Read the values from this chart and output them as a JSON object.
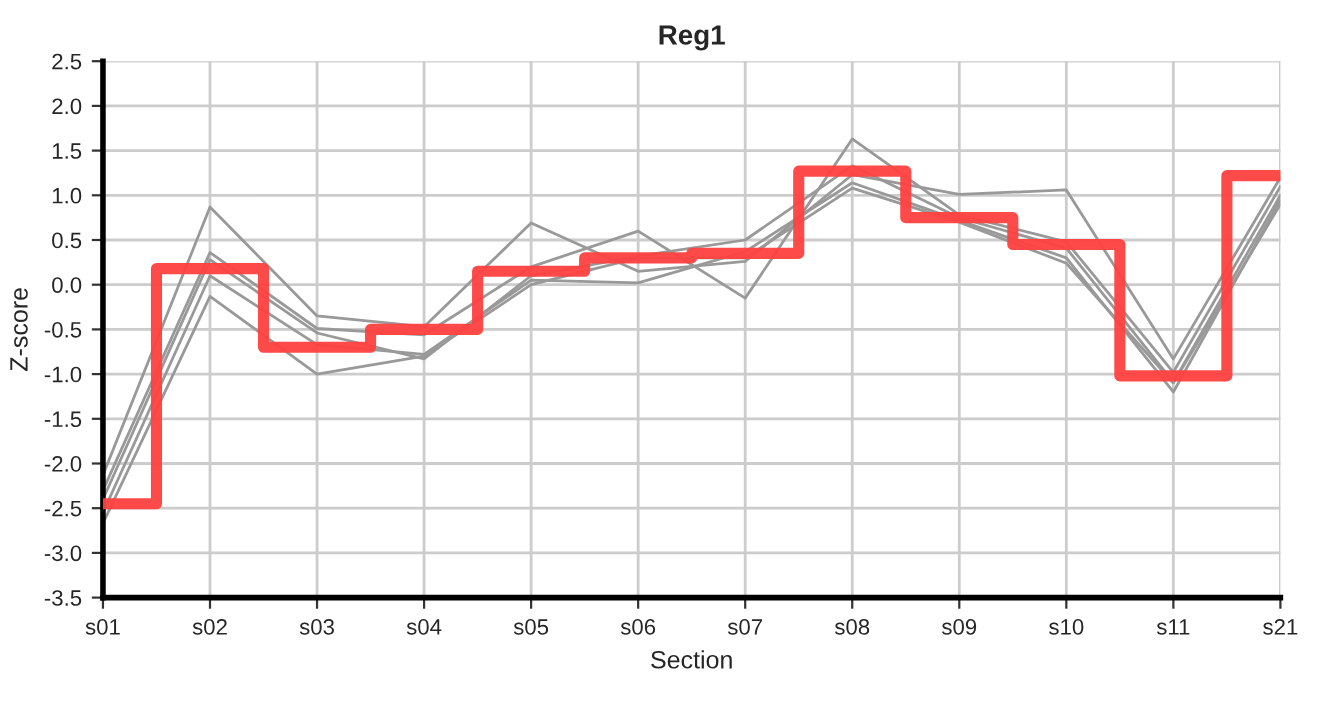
{
  "chart_data": {
    "type": "line",
    "title": "Reg1",
    "xlabel": "Section",
    "ylabel": "Z-score",
    "categories": [
      "s01",
      "s02",
      "s03",
      "s04",
      "s05",
      "s06",
      "s07",
      "s08",
      "s09",
      "s10",
      "s11",
      "s21"
    ],
    "ylim": [
      -3.5,
      2.5
    ],
    "yticks": [
      -3.5,
      {
        "value": -3,
        "label": "-3.0"
      },
      -2.5,
      {
        "value": -2,
        "label": "-2.0"
      },
      -1.5,
      {
        "value": -1,
        "label": "-1.0"
      },
      -0.5,
      {
        "value": 0,
        "label": "0.0"
      },
      0.5,
      {
        "value": 1,
        "label": "1.0"
      },
      1.5,
      {
        "value": 2,
        "label": "2.0"
      },
      2.5
    ],
    "grid": true,
    "marker": "none",
    "line_style": "solid",
    "series": [
      {
        "color": "#999999",
        "values": [
          -2.13,
          0.87,
          -0.35,
          -0.47,
          0.69,
          0.15,
          0.26,
          1.23,
          1.01,
          1.06,
          -0.83,
          1.2
        ]
      },
      {
        "color": "#999999",
        "values": [
          -2.3,
          0.36,
          -0.49,
          -0.56,
          0.2,
          0.6,
          -0.15,
          1.63,
          0.78,
          0.48,
          -0.98,
          1.1
        ]
      },
      {
        "color": "#999999",
        "values": [
          -2.4,
          0.28,
          -0.54,
          -0.83,
          0.1,
          0.32,
          0.5,
          1.33,
          0.75,
          0.41,
          -1.09,
          1.0
        ]
      },
      {
        "color": "#999999",
        "values": [
          -2.55,
          0.1,
          -0.67,
          -0.78,
          0.05,
          0.02,
          0.37,
          1.14,
          0.72,
          0.3,
          -1.2,
          0.95
        ]
      },
      {
        "color": "#999999",
        "values": [
          -2.67,
          -0.13,
          -1.0,
          -0.8,
          0.0,
          0.3,
          0.3,
          1.08,
          0.7,
          0.24,
          -1.1,
          0.9
        ]
      },
      {
        "type": "step",
        "color": "#ff4040",
        "values": [
          -2.45,
          0.18,
          -0.7,
          -0.5,
          0.15,
          0.3,
          0.35,
          1.27,
          0.75,
          0.45,
          -1.02,
          1.22
        ]
      }
    ]
  }
}
